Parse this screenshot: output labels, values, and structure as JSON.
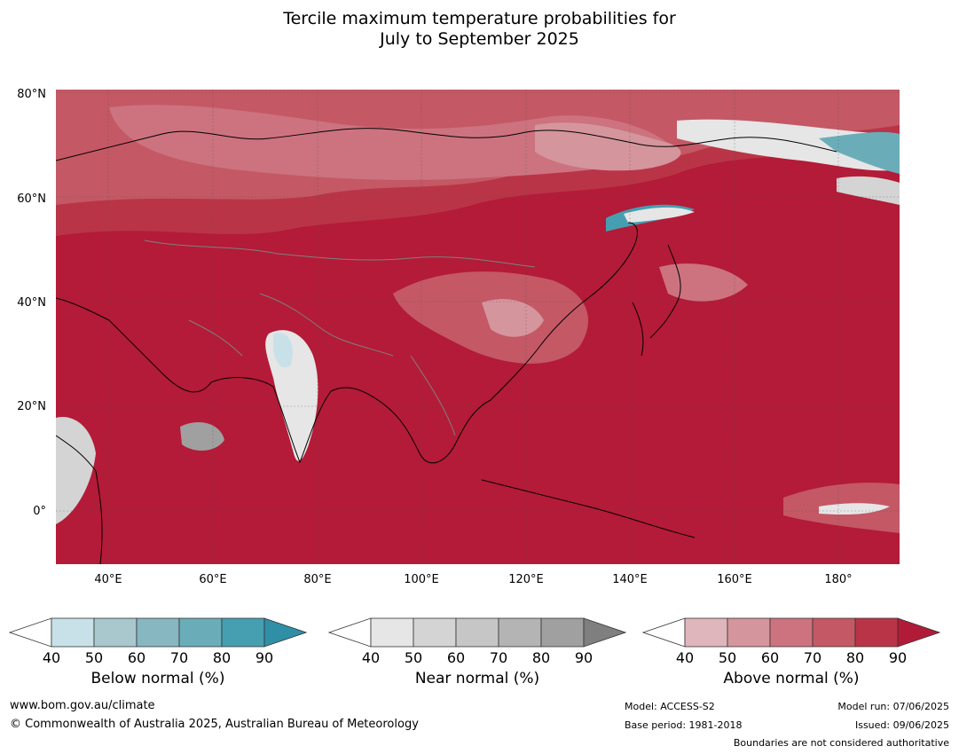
{
  "title_line1": "Tercile maximum temperature probabilities for",
  "title_line2": "July to September 2025",
  "axes": {
    "lat_labels": [
      "80°N",
      "60°N",
      "40°N",
      "20°N",
      "0°"
    ],
    "lon_labels": [
      "40°E",
      "60°E",
      "80°E",
      "100°E",
      "120°E",
      "140°E",
      "160°E",
      "180°"
    ]
  },
  "legends": [
    {
      "title": "Below normal (%)",
      "ticks": [
        "40",
        "50",
        "60",
        "70",
        "80",
        "90"
      ],
      "colors": [
        "#c8e1e8",
        "#a8c8ce",
        "#87b7c0",
        "#6aadb9",
        "#459fb1",
        "#2f8fa6"
      ]
    },
    {
      "title": "Near normal (%)",
      "ticks": [
        "40",
        "50",
        "60",
        "70",
        "80",
        "90"
      ],
      "colors": [
        "#e6e6e6",
        "#d4d4d4",
        "#c6c6c6",
        "#b4b4b4",
        "#a0a0a0",
        "#7f7f7f"
      ]
    },
    {
      "title": "Above normal (%)",
      "ticks": [
        "40",
        "50",
        "60",
        "70",
        "80",
        "90"
      ],
      "colors": [
        "#dfb6bc",
        "#d5959d",
        "#cc737f",
        "#c45865",
        "#ba3447",
        "#b21b38"
      ]
    }
  ],
  "footer": {
    "website": "www.bom.gov.au/climate",
    "copyright": "© Commonwealth of Australia 2025, Australian Bureau of Meteorology",
    "model": "Model: ACCESS-S2",
    "base_period": "Base period: 1981-2018",
    "model_run": "Model run: 07/06/2025",
    "issued": "Issued: 09/06/2025",
    "disclaimer": "Boundaries are not considered authoritative"
  },
  "colors": {
    "above_dominant": "#b31b38",
    "ocean": "#b31b38"
  }
}
